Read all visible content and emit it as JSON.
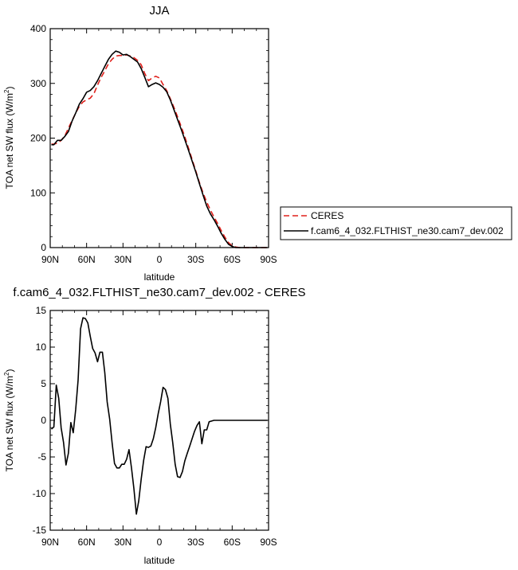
{
  "chart_data": [
    {
      "type": "line",
      "title": "JJA",
      "xlabel": "latitude",
      "ylabel": "TOA net SW flux (W/m",
      "ylabel_sup": "2",
      "ylabel_end": ")",
      "xlim": [
        90,
        -90
      ],
      "ylim": [
        0,
        400
      ],
      "x_ticks": [
        90,
        60,
        30,
        0,
        -30,
        -60,
        -90
      ],
      "x_tick_labels": [
        "90N",
        "60N",
        "30N",
        "0",
        "30S",
        "60S",
        "90S"
      ],
      "y_ticks": [
        0,
        100,
        200,
        300,
        400
      ],
      "y_tick_labels": [
        "0",
        "100",
        "200",
        "300",
        "400"
      ],
      "legend_position": "right",
      "series": [
        {
          "name": "CERES",
          "style": "dashed",
          "color": "#e0201b",
          "x": [
            89,
            87,
            84,
            81,
            78,
            75,
            72,
            69,
            66,
            63,
            60,
            57,
            54,
            51,
            48,
            45,
            42,
            39,
            36,
            33,
            30,
            27,
            24,
            21,
            18,
            15,
            12,
            9,
            6,
            3,
            0,
            -3,
            -6,
            -9,
            -12,
            -15,
            -18,
            -21,
            -24,
            -27,
            -30,
            -33,
            -36,
            -39,
            -42,
            -45,
            -48,
            -51,
            -54,
            -57,
            -60,
            -63,
            -66,
            -69,
            -72,
            -75,
            -78,
            -81,
            -84,
            -87,
            -89
          ],
          "y": [
            189,
            189,
            191,
            196,
            204,
            218,
            232,
            246,
            258,
            266,
            270,
            273,
            281,
            297,
            311,
            323,
            336,
            344,
            350,
            351,
            351,
            352,
            350,
            347,
            342,
            334,
            318,
            305,
            310,
            313,
            310,
            298,
            287,
            272,
            256,
            239,
            221,
            202,
            182,
            161,
            140,
            119,
            100,
            83,
            69,
            56,
            44,
            31,
            19,
            9,
            3,
            1,
            0,
            0,
            0,
            0,
            0,
            0,
            0,
            0,
            0
          ]
        },
        {
          "name": "f.cam6_4_032.FLTHIST_ne30.cam7_dev.002",
          "style": "solid",
          "color": "#000000",
          "x": [
            89,
            87,
            84,
            81,
            78,
            75,
            72,
            69,
            66,
            63,
            60,
            57,
            54,
            51,
            48,
            45,
            42,
            39,
            36,
            33,
            30,
            27,
            24,
            21,
            18,
            15,
            12,
            9,
            6,
            3,
            0,
            -3,
            -6,
            -9,
            -12,
            -15,
            -18,
            -21,
            -24,
            -27,
            -30,
            -33,
            -36,
            -39,
            -42,
            -45,
            -48,
            -51,
            -54,
            -57,
            -60,
            -63,
            -66,
            -69,
            -72,
            -75,
            -78,
            -81,
            -84,
            -87,
            -89
          ],
          "y": [
            188,
            188,
            196,
            196,
            203,
            212,
            231,
            246,
            262,
            272,
            284,
            287,
            294,
            305,
            318,
            331,
            344,
            353,
            359,
            357,
            352,
            353,
            349,
            344,
            339,
            327,
            311,
            294,
            298,
            301,
            298,
            293,
            285,
            270,
            252,
            234,
            216,
            197,
            178,
            158,
            138,
            117,
            96,
            76,
            62,
            51,
            39,
            26,
            15,
            6,
            2,
            0,
            0,
            0,
            0,
            0,
            0,
            0,
            0,
            0,
            0
          ]
        }
      ]
    },
    {
      "type": "line",
      "title": "f.cam6_4_032.FLTHIST_ne30.cam7_dev.002 - CERES",
      "xlabel": "latitude",
      "ylabel": "TOA net SW flux (W/m",
      "ylabel_sup": "2",
      "ylabel_end": ")",
      "xlim": [
        90,
        -90
      ],
      "ylim": [
        -15,
        15
      ],
      "x_ticks": [
        90,
        60,
        30,
        0,
        -30,
        -60,
        -90
      ],
      "x_tick_labels": [
        "90N",
        "60N",
        "30N",
        "0",
        "30S",
        "60S",
        "90S"
      ],
      "y_ticks": [
        -15,
        -10,
        -5,
        0,
        5,
        10,
        15
      ],
      "y_tick_labels": [
        "-15",
        "-10",
        "-5",
        "0",
        "5",
        "10",
        "15"
      ],
      "series": [
        {
          "style": "solid",
          "color": "#000000",
          "x": [
            89,
            87,
            85,
            83,
            81,
            79,
            77,
            75,
            73,
            71,
            69,
            67,
            65,
            63,
            61,
            59,
            57,
            55,
            53,
            51,
            49,
            47,
            45,
            43,
            41,
            39,
            37,
            35,
            33,
            31,
            29,
            27,
            25,
            23,
            21,
            19,
            17,
            15,
            13,
            11,
            9,
            7,
            5,
            3,
            1,
            -1,
            -3,
            -5,
            -7,
            -9,
            -11,
            -13,
            -15,
            -17,
            -19,
            -21,
            -23,
            -25,
            -27,
            -29,
            -31,
            -33,
            -35,
            -37,
            -39,
            -41,
            -43,
            -45,
            -47,
            -49,
            -51,
            -53,
            -55,
            -57,
            -59,
            -61,
            -63,
            -65,
            -67,
            -69,
            -71,
            -73,
            -75,
            -77,
            -79,
            -81,
            -83,
            -85,
            -87,
            -89
          ],
          "y": [
            -1.2,
            -0.9,
            4.8,
            3.0,
            -1.0,
            -3.0,
            -6.1,
            -4.5,
            -0.3,
            -1.7,
            1.5,
            5.5,
            12.5,
            14.0,
            13.9,
            13.3,
            11.5,
            9.8,
            9.2,
            8.0,
            9.3,
            9.3,
            6.5,
            2.5,
            0.2,
            -3.0,
            -5.9,
            -6.5,
            -6.5,
            -6.0,
            -6.0,
            -5.3,
            -4.0,
            -6.5,
            -9.3,
            -12.8,
            -11.0,
            -8.0,
            -5.5,
            -3.6,
            -3.7,
            -3.5,
            -2.5,
            -1.0,
            0.9,
            2.5,
            4.5,
            4.2,
            3.0,
            -0.5,
            -3.0,
            -6.0,
            -7.7,
            -7.8,
            -7.0,
            -5.5,
            -4.5,
            -3.5,
            -2.5,
            -1.5,
            -0.7,
            -0.2,
            -3.2,
            -1.3,
            -1.3,
            -0.2,
            -0.1,
            0.0,
            0.0,
            0.0,
            0.0,
            0.0,
            0.0,
            0.0,
            0.0,
            0.0,
            0.0,
            0.0,
            0.0,
            0.0,
            0.0,
            0.0,
            0.0,
            0.0,
            0.0,
            0.0,
            0.0,
            0.0,
            0.0,
            0.0
          ]
        }
      ]
    }
  ]
}
